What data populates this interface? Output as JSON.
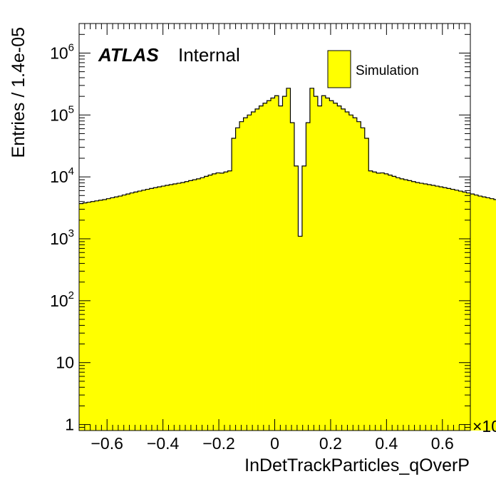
{
  "chart_data": {
    "type": "histogram",
    "title": "",
    "xlabel": "InDetTrackParticles_qOverP",
    "ylabel": "Entries / 1.4e-05",
    "x_multiplier_label": "×10",
    "yscale": "log",
    "xlim": [
      -0.7,
      0.7
    ],
    "ylim": [
      0.8,
      3000000
    ],
    "x_ticks": [
      "−0.6",
      "−0.4",
      "−0.2",
      "0",
      "0.2",
      "0.4",
      "0.6"
    ],
    "x_tick_values": [
      -0.6,
      -0.4,
      -0.2,
      0,
      0.2,
      0.4,
      0.6
    ],
    "y_ticks": [
      {
        "value": 1,
        "base": "1",
        "exp": ""
      },
      {
        "value": 10,
        "base": "10",
        "exp": ""
      },
      {
        "value": 100,
        "base": "10",
        "exp": "2"
      },
      {
        "value": 1000,
        "base": "10",
        "exp": "3"
      },
      {
        "value": 10000,
        "base": "10",
        "exp": "4"
      },
      {
        "value": 100000,
        "base": "10",
        "exp": "5"
      },
      {
        "value": 1000000,
        "base": "10",
        "exp": "6"
      }
    ],
    "atlas_label": {
      "bold": "ATLAS",
      "text": "Internal"
    },
    "legend": {
      "position": "top-right",
      "entries": [
        {
          "name": "Simulation",
          "color": "#ffff00"
        }
      ]
    },
    "fill_color": "#ffff00",
    "line_color": "#000000",
    "series": [
      {
        "name": "Simulation",
        "bin_edges_start": -0.7,
        "bin_width": 0.014,
        "values": [
          3700,
          3800,
          3900,
          4000,
          4100,
          4200,
          4300,
          4450,
          4600,
          4750,
          4900,
          5100,
          5300,
          5500,
          5700,
          5900,
          6100,
          6300,
          6500,
          6700,
          6900,
          7100,
          7300,
          7500,
          7700,
          7900,
          8100,
          8400,
          8700,
          9000,
          9300,
          9700,
          10200,
          10700,
          11200,
          11600,
          11500,
          12000,
          12500,
          42000,
          62000,
          78000,
          90000,
          100000,
          112000,
          125000,
          140000,
          155000,
          170000,
          188000,
          205000,
          140000,
          200000,
          270000,
          75000,
          15000,
          1100,
          15000,
          75000,
          270000,
          200000,
          140000,
          205000,
          188000,
          170000,
          155000,
          140000,
          125000,
          112000,
          100000,
          90000,
          78000,
          62000,
          42000,
          12500,
          12000,
          11500,
          11600,
          11200,
          10700,
          10200,
          9700,
          9300,
          9000,
          8700,
          8400,
          8100,
          7900,
          7700,
          7500,
          7300,
          7100,
          6900,
          6700,
          6500,
          6300,
          6100,
          5900,
          5700,
          5500,
          5300,
          5100,
          4900,
          4750,
          4600,
          4450,
          4300,
          4200,
          4100,
          4000,
          3900,
          3800,
          3700,
          3600
        ]
      }
    ]
  }
}
